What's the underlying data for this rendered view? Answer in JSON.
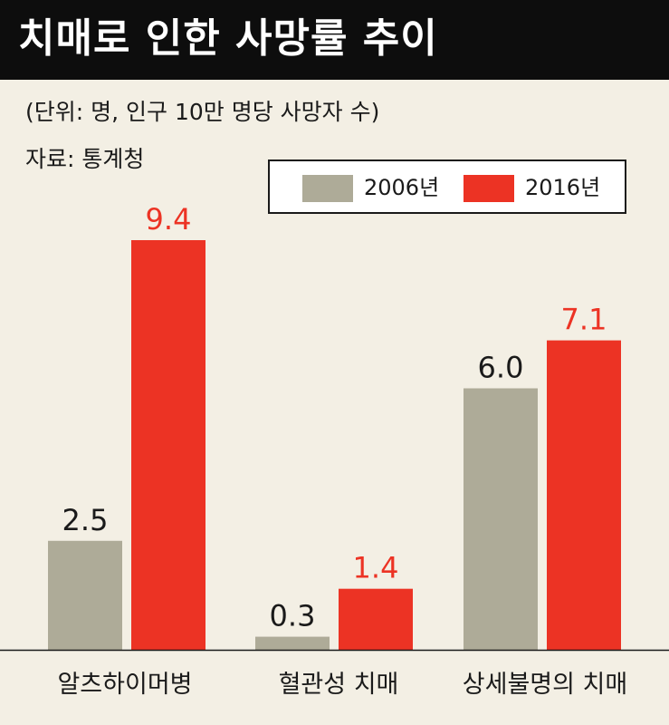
{
  "header": {
    "title": "치매로 인한 사망률 추이"
  },
  "notes": {
    "unit": "(단위: 명,  인구 10만 명당 사망자 수)",
    "source": "자료: 통계청"
  },
  "colors": {
    "background": "#f3efe4",
    "header_bg": "#0d0d0d",
    "series_2006": "#aeab98",
    "series_2016": "#ec3324",
    "label_2006": "#1a1a1a",
    "label_2016": "#ec3324"
  },
  "chart_data": {
    "type": "bar",
    "title": "치매로 인한 사망률 추이",
    "categories": [
      "알츠하이머병",
      "혈관성 치매",
      "상세불명의 치매"
    ],
    "series": [
      {
        "name": "2006년",
        "values": [
          2.5,
          0.3,
          6.0
        ]
      },
      {
        "name": "2016년",
        "values": [
          9.4,
          1.4,
          7.1
        ]
      }
    ],
    "value_labels": [
      [
        "2.5",
        "0.3",
        "6.0"
      ],
      [
        "9.4",
        "1.4",
        "7.1"
      ]
    ],
    "ylim": [
      0,
      9.4
    ],
    "legend_position": "top-right",
    "grid": false
  }
}
